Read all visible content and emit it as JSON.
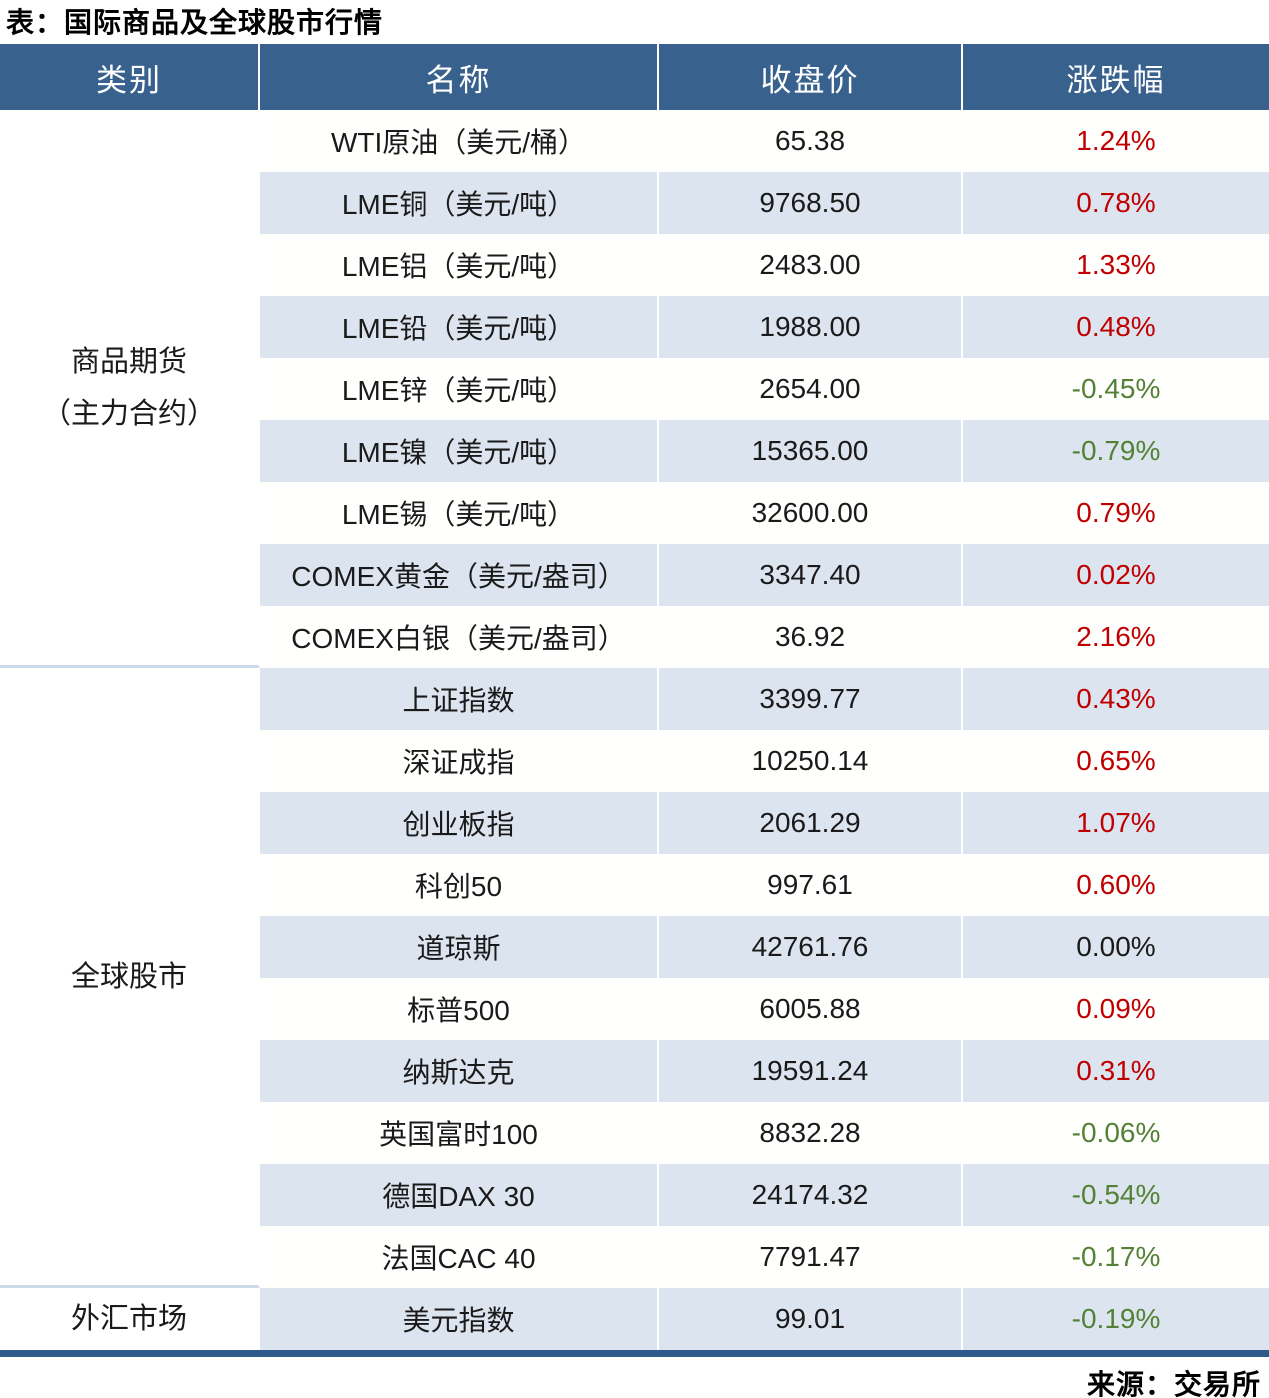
{
  "title": "表：国际商品及全球股市行情",
  "source": "来源：交易所",
  "colors": {
    "header_bg": "#38618e",
    "stripe_bg": "#dce4ef",
    "up_red": "#c00000",
    "down_green": "#538135",
    "flat_black": "#1a1a1a",
    "thick_border": "#2f5a8c",
    "category_divider": "#ccd9e9"
  },
  "table": {
    "headers": [
      "类别",
      "名称",
      "收盘价",
      "涨跌幅"
    ],
    "groups": [
      {
        "category_lines": [
          "商品期货",
          "（主力合约）"
        ],
        "rows": [
          {
            "name": "WTI原油（美元/桶）",
            "close": "65.38",
            "change": "1.24%",
            "direction": "up"
          },
          {
            "name": "LME铜（美元/吨）",
            "close": "9768.50",
            "change": "0.78%",
            "direction": "up"
          },
          {
            "name": "LME铝（美元/吨）",
            "close": "2483.00",
            "change": "1.33%",
            "direction": "up"
          },
          {
            "name": "LME铅（美元/吨）",
            "close": "1988.00",
            "change": "0.48%",
            "direction": "up"
          },
          {
            "name": "LME锌（美元/吨）",
            "close": "2654.00",
            "change": "-0.45%",
            "direction": "down"
          },
          {
            "name": "LME镍（美元/吨）",
            "close": "15365.00",
            "change": "-0.79%",
            "direction": "down"
          },
          {
            "name": "LME锡（美元/吨）",
            "close": "32600.00",
            "change": "0.79%",
            "direction": "up"
          },
          {
            "name": "COMEX黄金（美元/盎司）",
            "close": "3347.40",
            "change": "0.02%",
            "direction": "up"
          },
          {
            "name": "COMEX白银（美元/盎司）",
            "close": "36.92",
            "change": "2.16%",
            "direction": "up"
          }
        ]
      },
      {
        "category_lines": [
          "全球股市"
        ],
        "rows": [
          {
            "name": "上证指数",
            "close": "3399.77",
            "change": "0.43%",
            "direction": "up"
          },
          {
            "name": "深证成指",
            "close": "10250.14",
            "change": "0.65%",
            "direction": "up"
          },
          {
            "name": "创业板指",
            "close": "2061.29",
            "change": "1.07%",
            "direction": "up"
          },
          {
            "name": "科创50",
            "close": "997.61",
            "change": "0.60%",
            "direction": "up"
          },
          {
            "name": "道琼斯",
            "close": "42761.76",
            "change": "0.00%",
            "direction": "flat"
          },
          {
            "name": "标普500",
            "close": "6005.88",
            "change": "0.09%",
            "direction": "up"
          },
          {
            "name": "纳斯达克",
            "close": "19591.24",
            "change": "0.31%",
            "direction": "up"
          },
          {
            "name": "英国富时100",
            "close": "8832.28",
            "change": "-0.06%",
            "direction": "down"
          },
          {
            "name": "德国DAX 30",
            "close": "24174.32",
            "change": "-0.54%",
            "direction": "down"
          },
          {
            "name": "法国CAC 40",
            "close": "7791.47",
            "change": "-0.17%",
            "direction": "down"
          }
        ]
      },
      {
        "category_lines": [
          "外汇市场"
        ],
        "rows": [
          {
            "name": "美元指数",
            "close": "99.01",
            "change": "-0.19%",
            "direction": "down"
          }
        ]
      }
    ]
  }
}
